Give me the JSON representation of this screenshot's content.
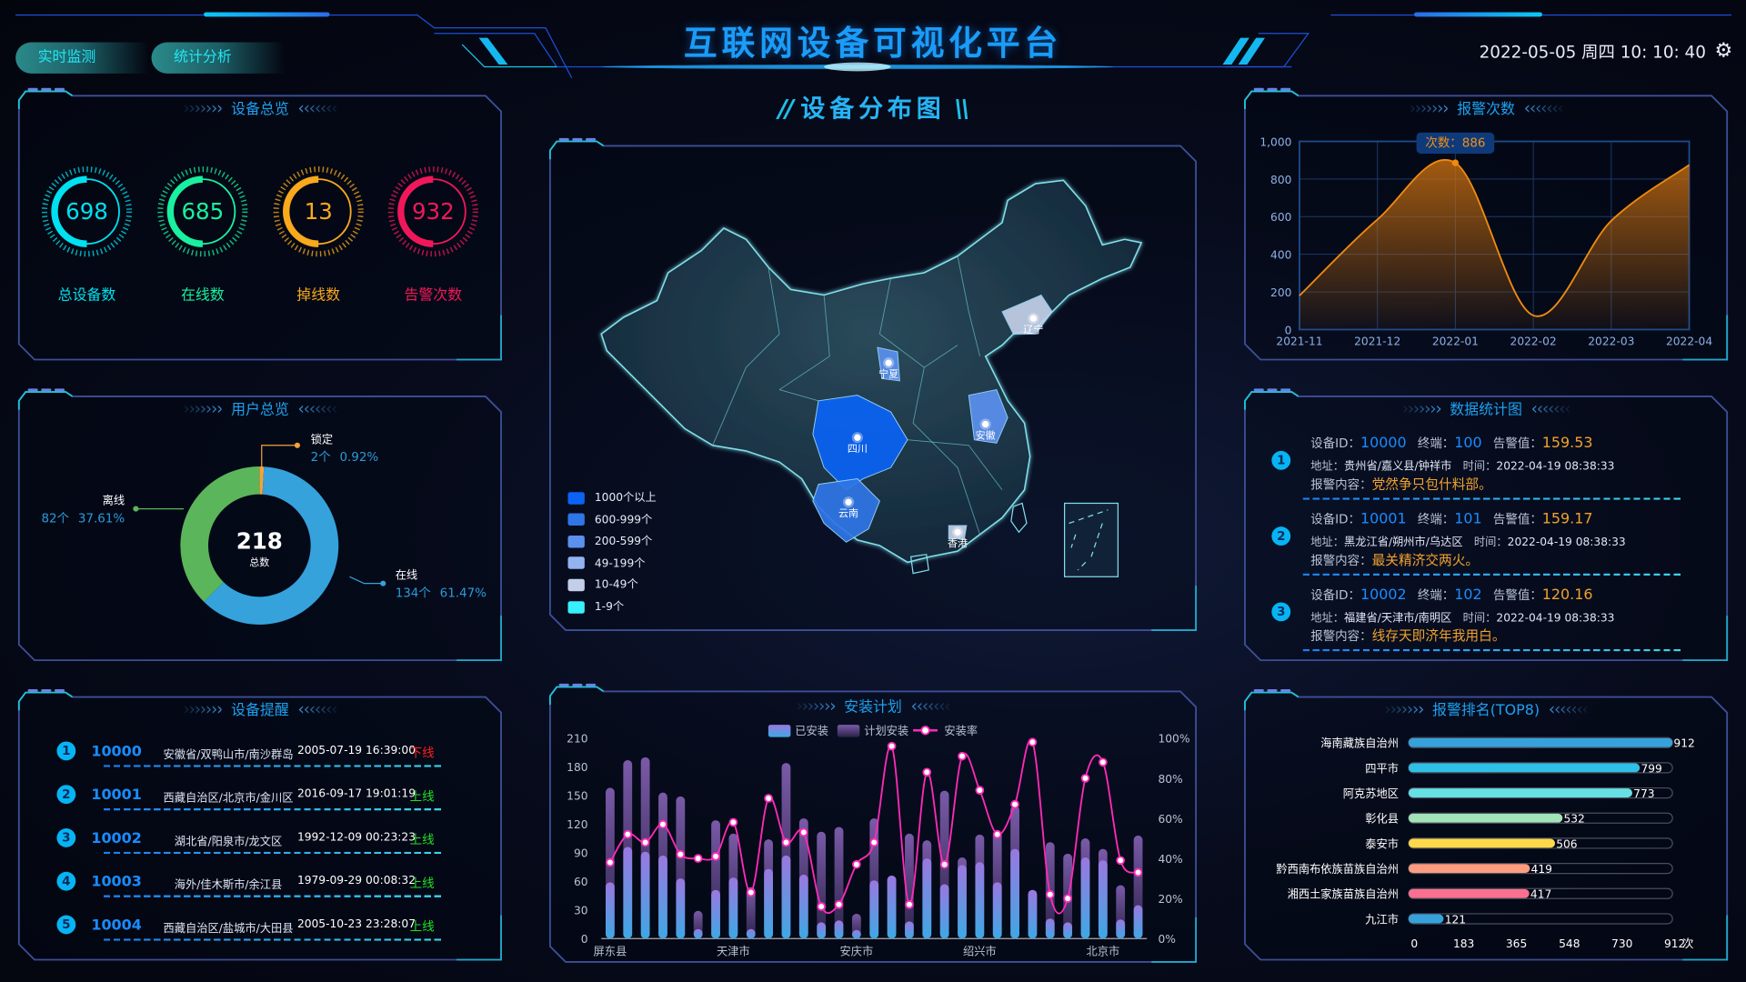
{
  "header": {
    "title": "互联网设备可视化平台",
    "tabs": [
      {
        "label": "实时监测"
      },
      {
        "label": "统计分析"
      }
    ],
    "datetime": "2022-05-05 周四 10: 10: 40",
    "settings_icon": "gear-icon"
  },
  "overview": {
    "title": "设备总览",
    "gauges": [
      {
        "value": "698",
        "label": "总设备数",
        "color": "#00e0f0"
      },
      {
        "value": "685",
        "label": "在线数",
        "color": "#19f0a0"
      },
      {
        "value": "13",
        "label": "掉线数",
        "color": "#f8a91c"
      },
      {
        "value": "932",
        "label": "告警次数",
        "color": "#f0185a"
      }
    ]
  },
  "users": {
    "title": "用户总览",
    "total": "218",
    "total_label": "总数"
  },
  "reminders": {
    "title": "设备提醒",
    "items": [
      {
        "index": "1",
        "id": "10000",
        "address": "安徽省/双鸭山市/南沙群岛",
        "time": "2005-07-19 16:39:00",
        "status": "下线",
        "status_color": "#ff2020"
      },
      {
        "index": "2",
        "id": "10001",
        "address": "西藏自治区/北京市/金川区",
        "time": "2016-09-17 19:01:19",
        "status": "上线",
        "status_color": "#22e022"
      },
      {
        "index": "3",
        "id": "10002",
        "address": "湖北省/阳泉市/龙文区",
        "time": "1992-12-09 00:23:23",
        "status": "上线",
        "status_color": "#22e022"
      },
      {
        "index": "4",
        "id": "10003",
        "address": "海外/佳木斯市/余江县",
        "time": "1979-09-29 00:08:32",
        "status": "上线",
        "status_color": "#22e022"
      },
      {
        "index": "5",
        "id": "10004",
        "address": "西藏自治区/盐城市/大田县",
        "time": "2005-10-23 23:28:07",
        "status": "上线",
        "status_color": "#22e022"
      }
    ]
  },
  "map": {
    "title": "设备分布图",
    "legend": [
      {
        "label": "1000个以上",
        "color": "#0a63f5"
      },
      {
        "label": "600-999个",
        "color": "#2f76e6"
      },
      {
        "label": "200-599个",
        "color": "#5b90ee"
      },
      {
        "label": "49-199个",
        "color": "#93b2f0"
      },
      {
        "label": "10-49个",
        "color": "#c3cfe8"
      },
      {
        "label": "1-9个",
        "color": "#38f0fa"
      }
    ],
    "regions": [
      {
        "name": "辽宁",
        "color": "#c3cfe8"
      },
      {
        "name": "宁夏",
        "color": "#5b90ee"
      },
      {
        "name": "四川",
        "color": "#0a63f5"
      },
      {
        "name": "安徽",
        "color": "#5b90ee"
      },
      {
        "name": "云南",
        "color": "#2f76e6"
      },
      {
        "name": "香港",
        "color": "#c3cfe8"
      }
    ]
  },
  "install": {
    "title": "安装计划"
  },
  "alarms": {
    "title": "报警次数",
    "tooltip": "次数：886"
  },
  "stats": {
    "title": "数据统计图",
    "labels": {
      "id": "设备ID：",
      "terminal": "终端：",
      "alarm": "告警值：",
      "address": "地址：",
      "time": "时间：",
      "content": "报警内容："
    },
    "items": [
      {
        "index": "1",
        "id": "10000",
        "terminal": "100",
        "alarm": "159.53",
        "address": "贵州省/嘉义县/钟祥市",
        "time": "2022-04-19 08:38:33",
        "content": "党然争只包什料部。"
      },
      {
        "index": "2",
        "id": "10001",
        "terminal": "101",
        "alarm": "159.17",
        "address": "黑龙江省/朔州市/乌达区",
        "time": "2022-04-19 08:38:33",
        "content": "最关精济交两火。"
      },
      {
        "index": "3",
        "id": "10002",
        "terminal": "102",
        "alarm": "120.16",
        "address": "福建省/天津市/南明区",
        "time": "2022-04-19 08:38:33",
        "content": "线存天即济年我用白。"
      }
    ]
  },
  "ranking": {
    "title": "报警排名(TOP8)"
  },
  "chart_data": [
    {
      "type": "area",
      "x": [
        "2021-11",
        "2021-12",
        "2022-01",
        "2022-02",
        "2022-03",
        "2022-04"
      ],
      "values": [
        180,
        585,
        886,
        75,
        578,
        875
      ],
      "ylim": [
        0,
        1000
      ],
      "yticks": [
        "0",
        "200",
        "400",
        "600",
        "800",
        "1,000"
      ],
      "grid": true,
      "color": "#f08a10",
      "highlight_index": 2
    },
    {
      "type": "bar",
      "categories": [
        "屏东县",
        "",
        "",
        "",
        "",
        "",
        "",
        "天津市",
        "",
        "",
        "",
        "",
        "",
        "",
        "安庆市",
        "",
        "",
        "",
        "",
        "",
        "",
        "绍兴市",
        "",
        "",
        "",
        "",
        "",
        "",
        "北京市",
        "",
        ""
      ],
      "series": [
        {
          "name": "已安装",
          "type": "bar",
          "values": [
            59,
            96,
            91,
            87,
            63,
            10,
            51,
            64,
            10,
            73,
            87,
            67,
            17,
            19,
            9,
            61,
            66,
            18,
            84,
            57,
            77,
            80,
            59,
            94,
            51,
            21,
            17,
            85,
            82,
            20,
            35
          ]
        },
        {
          "name": "计划安装",
          "type": "bar",
          "values": [
            158,
            187,
            190,
            153,
            149,
            29,
            124,
            110,
            54,
            104,
            184,
            126,
            112,
            117,
            26,
            126,
            66,
            110,
            103,
            155,
            85,
            109,
            113,
            139,
            51,
            101,
            89,
            105,
            94,
            56,
            108
          ]
        },
        {
          "name": "安装率",
          "type": "line",
          "axis": "right",
          "values": [
            38,
            52,
            48,
            57,
            42,
            40,
            41,
            58,
            23,
            70,
            48,
            53,
            16,
            17,
            37,
            48,
            96,
            17,
            83,
            37,
            91,
            74,
            52,
            67,
            98,
            22,
            20,
            80,
            88,
            39,
            33
          ]
        }
      ],
      "ylim": [
        0,
        210
      ],
      "yticks": [
        "0",
        "30",
        "60",
        "90",
        "120",
        "150",
        "180",
        "210"
      ],
      "y2lim": [
        0,
        100
      ],
      "y2ticks": [
        "0%",
        "20%",
        "40%",
        "60%",
        "80%",
        "100%"
      ],
      "legend": "top"
    },
    {
      "type": "bar",
      "orientation": "horizontal",
      "categories": [
        "海南藏族自治州",
        "四平市",
        "阿克苏地区",
        "彰化县",
        "泰安市",
        "黔西南布依族苗族自治州",
        "湘西土家族苗族自治州",
        "九江市"
      ],
      "values": [
        912,
        799,
        773,
        532,
        506,
        419,
        417,
        121
      ],
      "colors": [
        "#35a2dc",
        "#2ec0e6",
        "#66e0e4",
        "#a2e4b8",
        "#ffd94a",
        "#ff9c80",
        "#fb7090",
        "#35a2dc"
      ],
      "xlim": [
        0,
        912
      ],
      "xticks": [
        "0",
        "183",
        "365",
        "548",
        "730",
        "912"
      ],
      "unit": "次"
    },
    {
      "type": "pie",
      "total": 218,
      "segments": [
        {
          "name": "锁定",
          "value": 2,
          "count": "2个",
          "percent": "0.92%",
          "color": "#f2a33a"
        },
        {
          "name": "在线",
          "value": 134,
          "count": "134个",
          "percent": "61.47%",
          "color": "#35a2dc"
        },
        {
          "name": "离线",
          "value": 82,
          "count": "82个",
          "percent": "37.61%",
          "color": "#5bb55a"
        }
      ]
    }
  ]
}
